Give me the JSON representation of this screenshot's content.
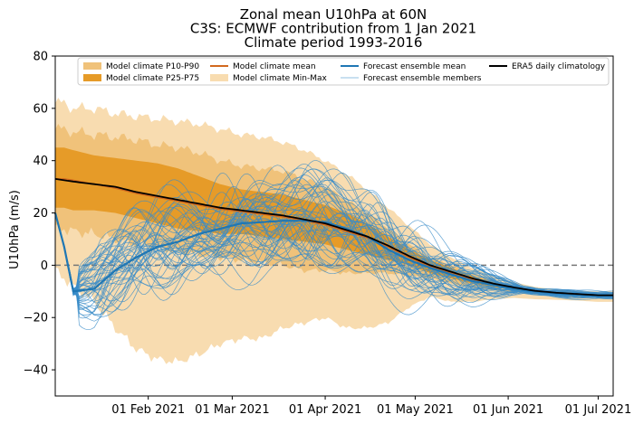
{
  "chart_data": {
    "type": "area",
    "title": [
      "Zonal mean U10hPa at 60N",
      "C3S: ECMWF contribution from 1 Jan 2021",
      "Climate period 1993-2016"
    ],
    "ylabel": "U10hPa (m/s)",
    "xlabel": "",
    "ylim": [
      -50,
      80
    ],
    "xlim": [
      "2021-01-01",
      "2021-07-06"
    ],
    "yticks": [
      -40,
      -20,
      0,
      20,
      40,
      60,
      80
    ],
    "yticklabels": [
      "−40",
      "−20",
      "0",
      "20",
      "40",
      "60",
      "80"
    ],
    "xticks": [
      "2021-02-01",
      "2021-03-01",
      "2021-04-01",
      "2021-05-01",
      "2021-06-01",
      "2021-07-01"
    ],
    "xticklabels": [
      "01 Feb 2021",
      "01 Mar 2021",
      "01 Apr 2021",
      "01 May 2021",
      "01 Jun 2021",
      "01 Jul 2021"
    ],
    "zero_line": true,
    "legend_position": "top",
    "legend": [
      {
        "label": "Model climate P10-P90",
        "kind": "patch",
        "color": "#f0c27a"
      },
      {
        "label": "Model climate P25-P75",
        "kind": "patch",
        "color": "#e69b28"
      },
      {
        "label": "Model climate mean",
        "kind": "line",
        "color": "#d2691e"
      },
      {
        "label": "Model climate Min-Max",
        "kind": "patch",
        "color": "#f8dcb0"
      },
      {
        "label": "Forecast ensemble mean",
        "kind": "line",
        "color": "#1f77b4"
      },
      {
        "label": "Forecast ensemble members",
        "kind": "thinline",
        "color": "#6baed6"
      },
      {
        "label": "ERA5 daily climatology",
        "kind": "line",
        "color": "#000000"
      }
    ],
    "colors": {
      "minmax": "#f8dcb0",
      "p10p90": "#f0c27a",
      "p25p75": "#e69b28",
      "model_mean": "#d2691e",
      "ens_mean": "#1f77b4",
      "ens_members": "#3a8cc8",
      "era5": "#000000",
      "zero": "#777777"
    },
    "x": [
      "2021-01-01",
      "2021-01-04",
      "2021-01-07",
      "2021-01-14",
      "2021-01-21",
      "2021-01-28",
      "2021-02-04",
      "2021-02-11",
      "2021-02-18",
      "2021-02-25",
      "2021-03-04",
      "2021-03-11",
      "2021-03-18",
      "2021-03-25",
      "2021-04-01",
      "2021-04-08",
      "2021-04-15",
      "2021-04-22",
      "2021-04-29",
      "2021-05-06",
      "2021-05-13",
      "2021-05-20",
      "2021-05-27",
      "2021-06-03",
      "2021-06-10",
      "2021-06-17",
      "2021-06-24",
      "2021-07-01",
      "2021-07-06"
    ],
    "series": {
      "era5": [
        33,
        32.5,
        32,
        31,
        30,
        28,
        26.5,
        25,
        23.5,
        22,
        21,
        20,
        19,
        17.5,
        16,
        13.5,
        11,
        7.5,
        3.5,
        0,
        -2.5,
        -5,
        -7,
        -8.5,
        -9.8,
        -10.5,
        -11,
        -11.5,
        -11.5
      ],
      "model_mean": [
        33,
        33,
        32.5,
        31,
        29.5,
        27.5,
        26,
        24.5,
        23,
        21.5,
        20.5,
        19.5,
        18.5,
        17,
        15.5,
        13,
        10.5,
        7,
        3,
        -0.5,
        -3,
        -5.5,
        -7.2,
        -8.7,
        -10,
        -10.7,
        -11.2,
        -11.5,
        -11.5
      ],
      "p25_upper": [
        45,
        45,
        44,
        42,
        41,
        40,
        39,
        37,
        34,
        31,
        29,
        28,
        27,
        25,
        23,
        20,
        16,
        11,
        6,
        2,
        -1,
        -4,
        -6.5,
        -8.2,
        -9.4,
        -10.2,
        -10.7,
        -11,
        -11
      ],
      "p25_lower": [
        22,
        22,
        21,
        21,
        20,
        18,
        16,
        14,
        13,
        12,
        12,
        11,
        10,
        9,
        8,
        6,
        4,
        2,
        0,
        -3,
        -5,
        -7,
        -8.3,
        -9.5,
        -10.7,
        -11.3,
        -11.7,
        -12,
        -12
      ],
      "p10_upper": [
        52,
        52,
        51,
        50,
        49,
        48,
        46,
        45,
        43,
        40,
        38,
        37,
        36,
        33,
        30,
        25,
        20,
        14,
        8,
        3,
        0,
        -3,
        -6,
        -7.8,
        -9,
        -9.8,
        -10.3,
        -10.6,
        -10.6
      ],
      "p10_lower": [
        14,
        14,
        13,
        12,
        10,
        8,
        7,
        5,
        4,
        3,
        2,
        1,
        0,
        -2,
        -2,
        -3,
        -3,
        -3,
        -4,
        -5,
        -7,
        -8.5,
        -9.5,
        -10.3,
        -11.2,
        -11.8,
        -12.2,
        -12.5,
        -12.5
      ],
      "max": [
        62,
        62,
        60,
        60,
        58,
        57,
        56,
        55,
        54,
        52,
        50,
        49,
        47,
        44,
        40,
        35,
        29,
        22,
        15,
        8,
        3,
        -1,
        -4,
        -6.5,
        -8.3,
        -9.3,
        -9.8,
        -10,
        -10
      ],
      "min": [
        -2,
        -5,
        -8,
        -14,
        -24,
        -32,
        -36,
        -37,
        -34,
        -30,
        -28,
        -28,
        -24,
        -22,
        -20,
        -24,
        -24,
        -22,
        -16,
        -12,
        -14,
        -14,
        -13,
        -12.5,
        -13,
        -13.2,
        -13.5,
        -14,
        -14
      ],
      "ens_mean": [
        20,
        7,
        -10,
        -9,
        -2,
        3,
        7,
        9,
        12,
        14,
        16,
        16.5,
        17,
        17,
        16.5,
        14,
        11,
        6,
        2,
        -1,
        -3.5,
        -6,
        -7.5,
        -9,
        -10,
        -10.7,
        -11.2,
        -11.5,
        -11.5
      ]
    },
    "ensemble_members_count": 50
  }
}
